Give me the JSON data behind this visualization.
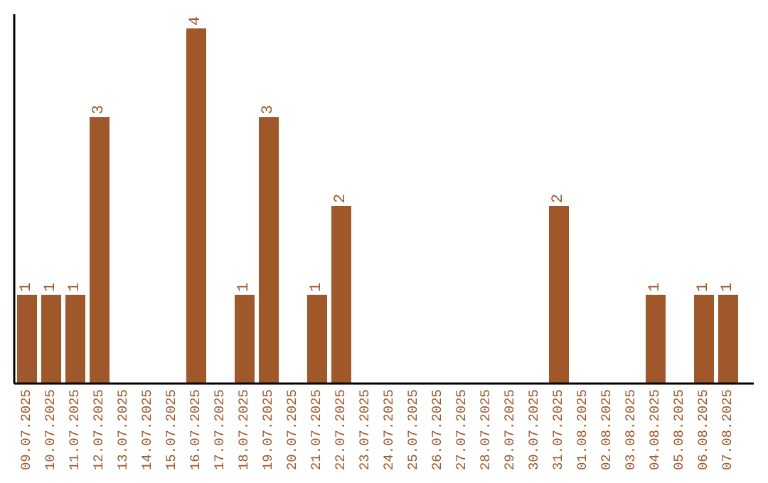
{
  "chart_data": {
    "type": "bar",
    "categories": [
      "09.07.2025",
      "10.07.2025",
      "11.07.2025",
      "12.07.2025",
      "13.07.2025",
      "14.07.2025",
      "15.07.2025",
      "16.07.2025",
      "17.07.2025",
      "18.07.2025",
      "19.07.2025",
      "20.07.2025",
      "21.07.2025",
      "22.07.2025",
      "23.07.2025",
      "24.07.2025",
      "25.07.2025",
      "26.07.2025",
      "27.07.2025",
      "28.07.2025",
      "29.07.2025",
      "30.07.2025",
      "31.07.2025",
      "01.08.2025",
      "02.08.2025",
      "03.08.2025",
      "04.08.2025",
      "05.08.2025",
      "06.08.2025",
      "07.08.2025"
    ],
    "values": [
      1,
      1,
      1,
      3,
      0,
      0,
      0,
      4,
      0,
      1,
      3,
      0,
      1,
      2,
      0,
      0,
      0,
      0,
      0,
      0,
      0,
      0,
      2,
      0,
      0,
      0,
      1,
      0,
      1,
      1
    ],
    "value_labels": [
      "1",
      "1",
      "1",
      "3",
      null,
      null,
      null,
      "4",
      null,
      "1",
      "3",
      null,
      "1",
      "2",
      null,
      null,
      null,
      null,
      null,
      null,
      null,
      null,
      "2",
      null,
      null,
      null,
      "1",
      null,
      "1",
      "1"
    ],
    "color": "#a0572a",
    "grid": false,
    "legend": false
  }
}
